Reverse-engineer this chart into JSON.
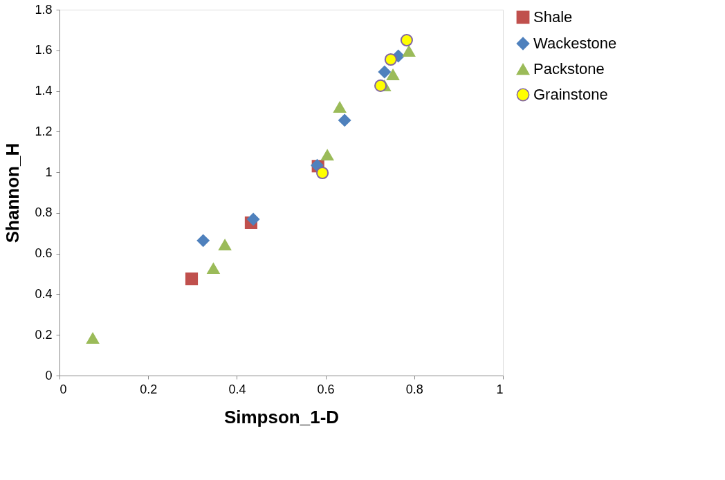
{
  "chart_data": {
    "type": "scatter",
    "xlabel": "Simpson_1-D",
    "ylabel": "Shannon_H",
    "xlim": [
      0,
      1
    ],
    "xticks": [
      0,
      0.2,
      0.4,
      0.6,
      0.8,
      1
    ],
    "ylim": [
      0,
      1.8
    ],
    "yticks": [
      0,
      0.2,
      0.4,
      0.6,
      0.8,
      1,
      1.2,
      1.4,
      1.6,
      1.8
    ],
    "grid": false,
    "legend": "right",
    "series": [
      {
        "name": "Shale",
        "color": "#c0504d",
        "marker": "square",
        "x": [
          0.298,
          0.432,
          0.583
        ],
        "values": [
          0.476,
          0.752,
          1.03
        ]
      },
      {
        "name": "Wackestone",
        "color": "#4f81bd",
        "marker": "diamond",
        "x": [
          0.324,
          0.437,
          0.581,
          0.643,
          0.733,
          0.764
        ],
        "values": [
          0.664,
          0.769,
          1.034,
          1.256,
          1.494,
          1.572
        ]
      },
      {
        "name": "Packstone",
        "color": "#9bbb59",
        "marker": "triangle",
        "x": [
          0.075,
          0.347,
          0.373,
          0.604,
          0.632,
          0.733,
          0.752,
          0.788
        ],
        "values": [
          0.184,
          0.527,
          0.643,
          1.085,
          1.32,
          1.426,
          1.48,
          1.596
        ]
      },
      {
        "name": "Grainstone",
        "color": "#ffff00",
        "marker": "circle",
        "x": [
          0.593,
          0.724,
          0.747,
          0.783
        ],
        "values": [
          0.997,
          1.426,
          1.555,
          1.65
        ]
      }
    ]
  }
}
